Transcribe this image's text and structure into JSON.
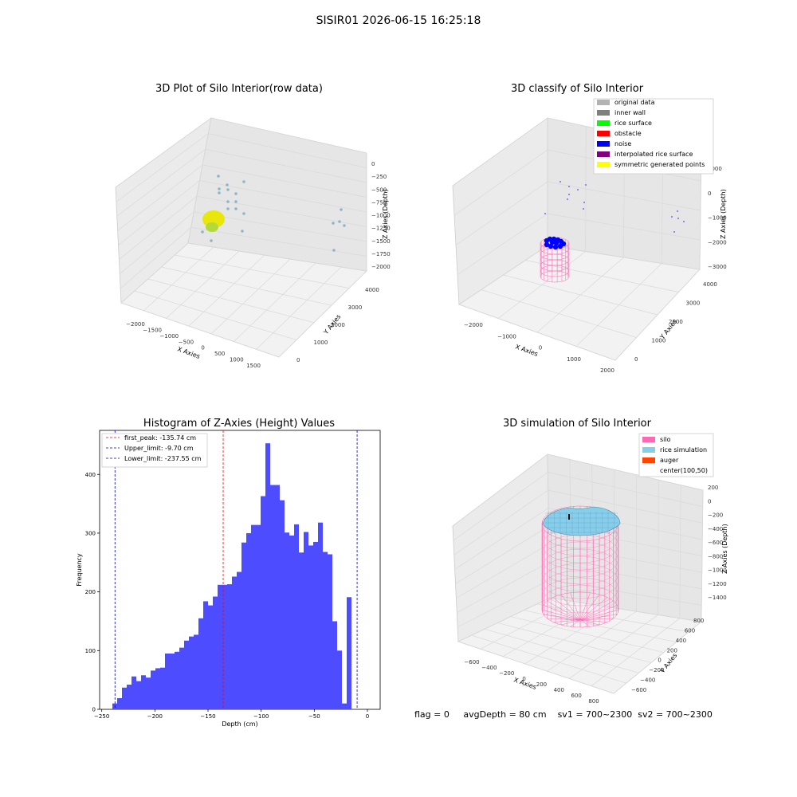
{
  "figure": {
    "suptitle": "SISIR01 2026-06-15 16:25:18",
    "status": {
      "flag": "flag = 0",
      "avg_depth": "avgDepth = 80 cm",
      "sv1": "sv1 = 700~2300",
      "sv2": "sv2 = 700~2300"
    }
  },
  "chart_data": [
    {
      "type": "scatter",
      "title": "3D Plot of Silo Interior(row data)",
      "xlabel": "X Axies",
      "ylabel": "Y Axies",
      "zlabel": "Z Axies (Depth)",
      "x_ticks": [
        "−2000",
        "−1500",
        "−1000",
        "−500",
        "0",
        "500",
        "1000",
        "1500"
      ],
      "y_ticks": [
        "0",
        "1000",
        "2000",
        "3000",
        "4000"
      ],
      "z_ticks": [
        "0",
        "−250",
        "−500",
        "−750",
        "−1000",
        "−1250",
        "−1500",
        "−1750",
        "−2000"
      ],
      "xlim": [
        -2200,
        1700
      ],
      "ylim": [
        -300,
        4200
      ],
      "zlim": [
        -2100,
        100
      ],
      "colors": {
        "points": "#8fb6c8",
        "cluster": "#e8e60a"
      }
    },
    {
      "type": "scatter",
      "title": "3D classify of Silo Interior",
      "xlabel": "X Axies",
      "ylabel": "Y Axies",
      "zlabel": "Z Axies (Depth)",
      "x_ticks": [
        "−2000",
        "−1000",
        "0",
        "1000",
        "2000"
      ],
      "y_ticks": [
        "0",
        "1000",
        "2000",
        "3000",
        "4000"
      ],
      "z_ticks": [
        "1000",
        "0",
        "−1000",
        "−2000",
        "−3000"
      ],
      "legend_position": "upper right",
      "legend": [
        {
          "label": "original data",
          "color": "#b3b3b3"
        },
        {
          "label": "inner wall",
          "color": "#7f7f7f"
        },
        {
          "label": "rice surface",
          "color": "#00ff00"
        },
        {
          "label": "obstacle",
          "color": "#ff0000"
        },
        {
          "label": "noise",
          "color": "#0000ff"
        },
        {
          "label": "interpolated rice surface",
          "color": "#800080"
        },
        {
          "label": "symmetric generated points",
          "color": "#ffff00"
        }
      ]
    },
    {
      "type": "bar",
      "title": "Histogram of Z-Axies (Height) Values",
      "xlabel": "Depth (cm)",
      "ylabel": "Frequency",
      "xlim": [
        -252,
        12
      ],
      "ylim": [
        0,
        475
      ],
      "x_ticks": [
        -250,
        -200,
        -150,
        -100,
        -50,
        0
      ],
      "x_tick_labels": [
        "−250",
        "−200",
        "−150",
        "−100",
        "−50",
        "0"
      ],
      "y_ticks": [
        0,
        100,
        200,
        300,
        400
      ],
      "bin_start": -240,
      "bin_width": 4.5,
      "values": [
        10,
        19,
        37,
        42,
        56,
        48,
        58,
        54,
        66,
        70,
        71,
        95,
        95,
        98,
        105,
        117,
        124,
        127,
        155,
        184,
        177,
        192,
        212,
        212,
        213,
        226,
        234,
        284,
        300,
        314,
        314,
        363,
        453,
        382,
        382,
        356,
        301,
        296,
        315,
        267,
        302,
        279,
        285,
        318,
        268,
        264,
        150,
        100,
        10,
        191
      ],
      "bar_color": "#4d4dff",
      "lines": [
        {
          "label": "first_peak: -135.74 cm",
          "x": -135.74,
          "color": "#ff0000"
        },
        {
          "label": "Upper_limit: -9.70 cm",
          "x": -9.7,
          "color": "#0000cc"
        },
        {
          "label": "Lower_limit: -237.55 cm",
          "x": -237.55,
          "color": "#0000cc"
        }
      ],
      "legend_position": "upper left"
    },
    {
      "type": "surface",
      "title": "3D simulation of Silo Interior",
      "xlabel": "X Axies",
      "ylabel": "Y Axies",
      "zlabel": "Z Axies (Depth)",
      "x_ticks": [
        "−600",
        "−400",
        "−200",
        "0",
        "200",
        "400",
        "600",
        "800"
      ],
      "y_ticks": [
        "800",
        "600",
        "400",
        "200",
        "0",
        "−200",
        "−400",
        "−600"
      ],
      "z_ticks": [
        "200",
        "0",
        "−200",
        "−400",
        "−600",
        "−800",
        "−1000",
        "−1200",
        "−1400"
      ],
      "legend_position": "upper right",
      "legend": [
        {
          "label": "silo",
          "color": "#ff69b4"
        },
        {
          "label": "rice simulation",
          "color": "#87ceeb"
        },
        {
          "label": "auger",
          "color": "#ff4500"
        },
        {
          "label": "center(100,50)",
          "color": "#ffffff"
        }
      ]
    }
  ]
}
